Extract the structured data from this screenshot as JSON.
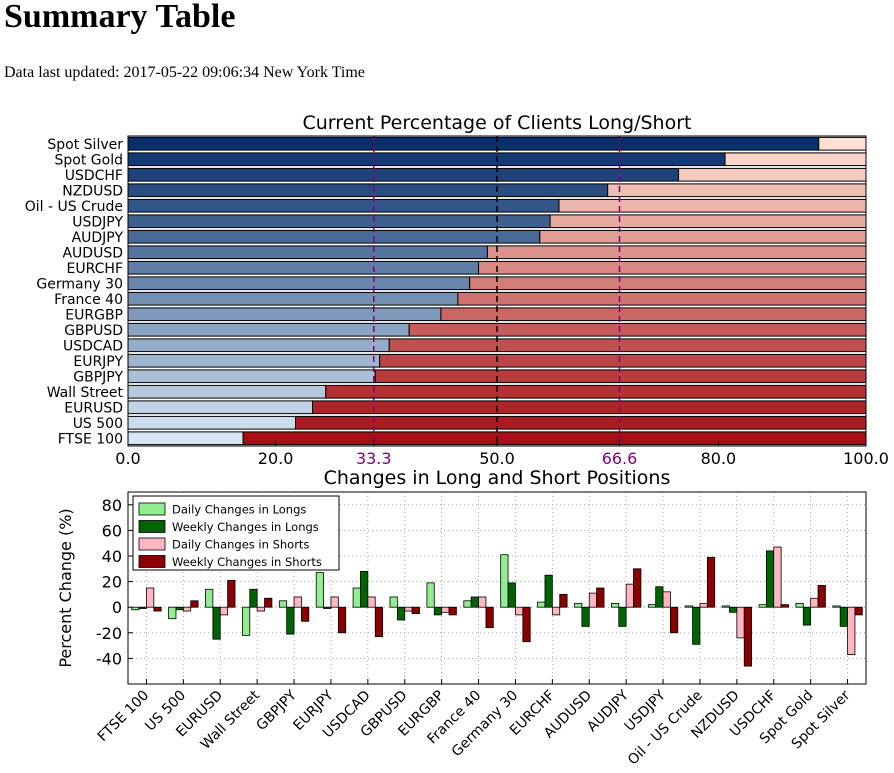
{
  "page": {
    "title": "Summary Table",
    "updated_label": "Data last updated:",
    "updated_value": "2017-05-22 09:06:34 New York Time"
  },
  "chart_data": [
    {
      "type": "bar",
      "orientation": "horizontal",
      "stacked": true,
      "title": "Current Percentage of Clients Long/Short",
      "categories": [
        "Spot Silver",
        "Spot Gold",
        "USDCHF",
        "NZDUSD",
        "Oil - US Crude",
        "USDJPY",
        "AUDJPY",
        "AUDUSD",
        "EURCHF",
        "Germany 30",
        "France 40",
        "EURGBP",
        "GBPUSD",
        "USDCAD",
        "EURJPY",
        "GBPJPY",
        "Wall Street",
        "EURUSD",
        "US 500",
        "FTSE 100"
      ],
      "long_pct": [
        93.6,
        80.9,
        74.6,
        65.0,
        58.4,
        57.2,
        55.8,
        48.7,
        47.5,
        46.3,
        44.7,
        42.4,
        38.1,
        35.4,
        34.1,
        33.5,
        26.8,
        25.0,
        22.7,
        15.6
      ],
      "xlim": [
        0,
        100
      ],
      "xticks": [
        "0.0",
        "20.0",
        "33.3",
        "50.0",
        "66.6",
        "80.0",
        "100.0"
      ],
      "reference_lines": [
        {
          "value": 33.3,
          "label": "33.3",
          "color": "#800080",
          "style": "dashed"
        },
        {
          "value": 50.0,
          "label": "50.0",
          "color": "#000000",
          "style": "dashed"
        },
        {
          "value": 66.6,
          "label": "66.6",
          "color": "#800080",
          "style": "dashed"
        }
      ],
      "colors": {
        "long": "blues gradient",
        "short": "reds gradient"
      }
    },
    {
      "type": "bar",
      "title": "Changes in Long and Short Positions",
      "ylabel": "Percent Change (%)",
      "ylim": [
        -60,
        90
      ],
      "yticks": [
        80,
        60,
        40,
        20,
        0,
        -20,
        -40
      ],
      "grid": true,
      "legend_position": "top-left",
      "categories": [
        "FTSE 100",
        "US 500",
        "EURUSD",
        "Wall Street",
        "GBPJPY",
        "EURJPY",
        "USDCAD",
        "GBPUSD",
        "EURGBP",
        "France 40",
        "Germany 30",
        "EURCHF",
        "AUDUSD",
        "AUDJPY",
        "USDJPY",
        "Oil - US Crude",
        "NZDUSD",
        "USDCHF",
        "Spot Gold",
        "Spot Silver"
      ],
      "series": [
        {
          "name": "Daily Changes in Longs",
          "color": "#90ee90",
          "values": [
            -2,
            -9,
            14,
            -22,
            5,
            27,
            15,
            8,
            19,
            5,
            41,
            4,
            3,
            3,
            2,
            1,
            1,
            2,
            3,
            1
          ]
        },
        {
          "name": "Weekly Changes in Longs",
          "color": "#006400",
          "values": [
            -1,
            -2,
            -25,
            14,
            -21,
            -1,
            28,
            -10,
            -6,
            8,
            19,
            25,
            -15,
            -15,
            16,
            -29,
            -4,
            44,
            -14,
            -15
          ]
        },
        {
          "name": "Daily Changes in Shorts",
          "color": "#ffb6c1",
          "values": [
            15,
            -3,
            -6,
            -3,
            8,
            8,
            8,
            -3,
            -4,
            8,
            -6,
            -6,
            11,
            18,
            12,
            3,
            -24,
            47,
            7,
            -37
          ]
        },
        {
          "name": "Weekly Changes in Shorts",
          "color": "#8b0000",
          "values": [
            -3,
            5,
            21,
            7,
            -11,
            -20,
            -23,
            -5,
            -6,
            -16,
            -27,
            10,
            15,
            30,
            -20,
            39,
            -46,
            2,
            17,
            -6
          ]
        }
      ]
    }
  ]
}
